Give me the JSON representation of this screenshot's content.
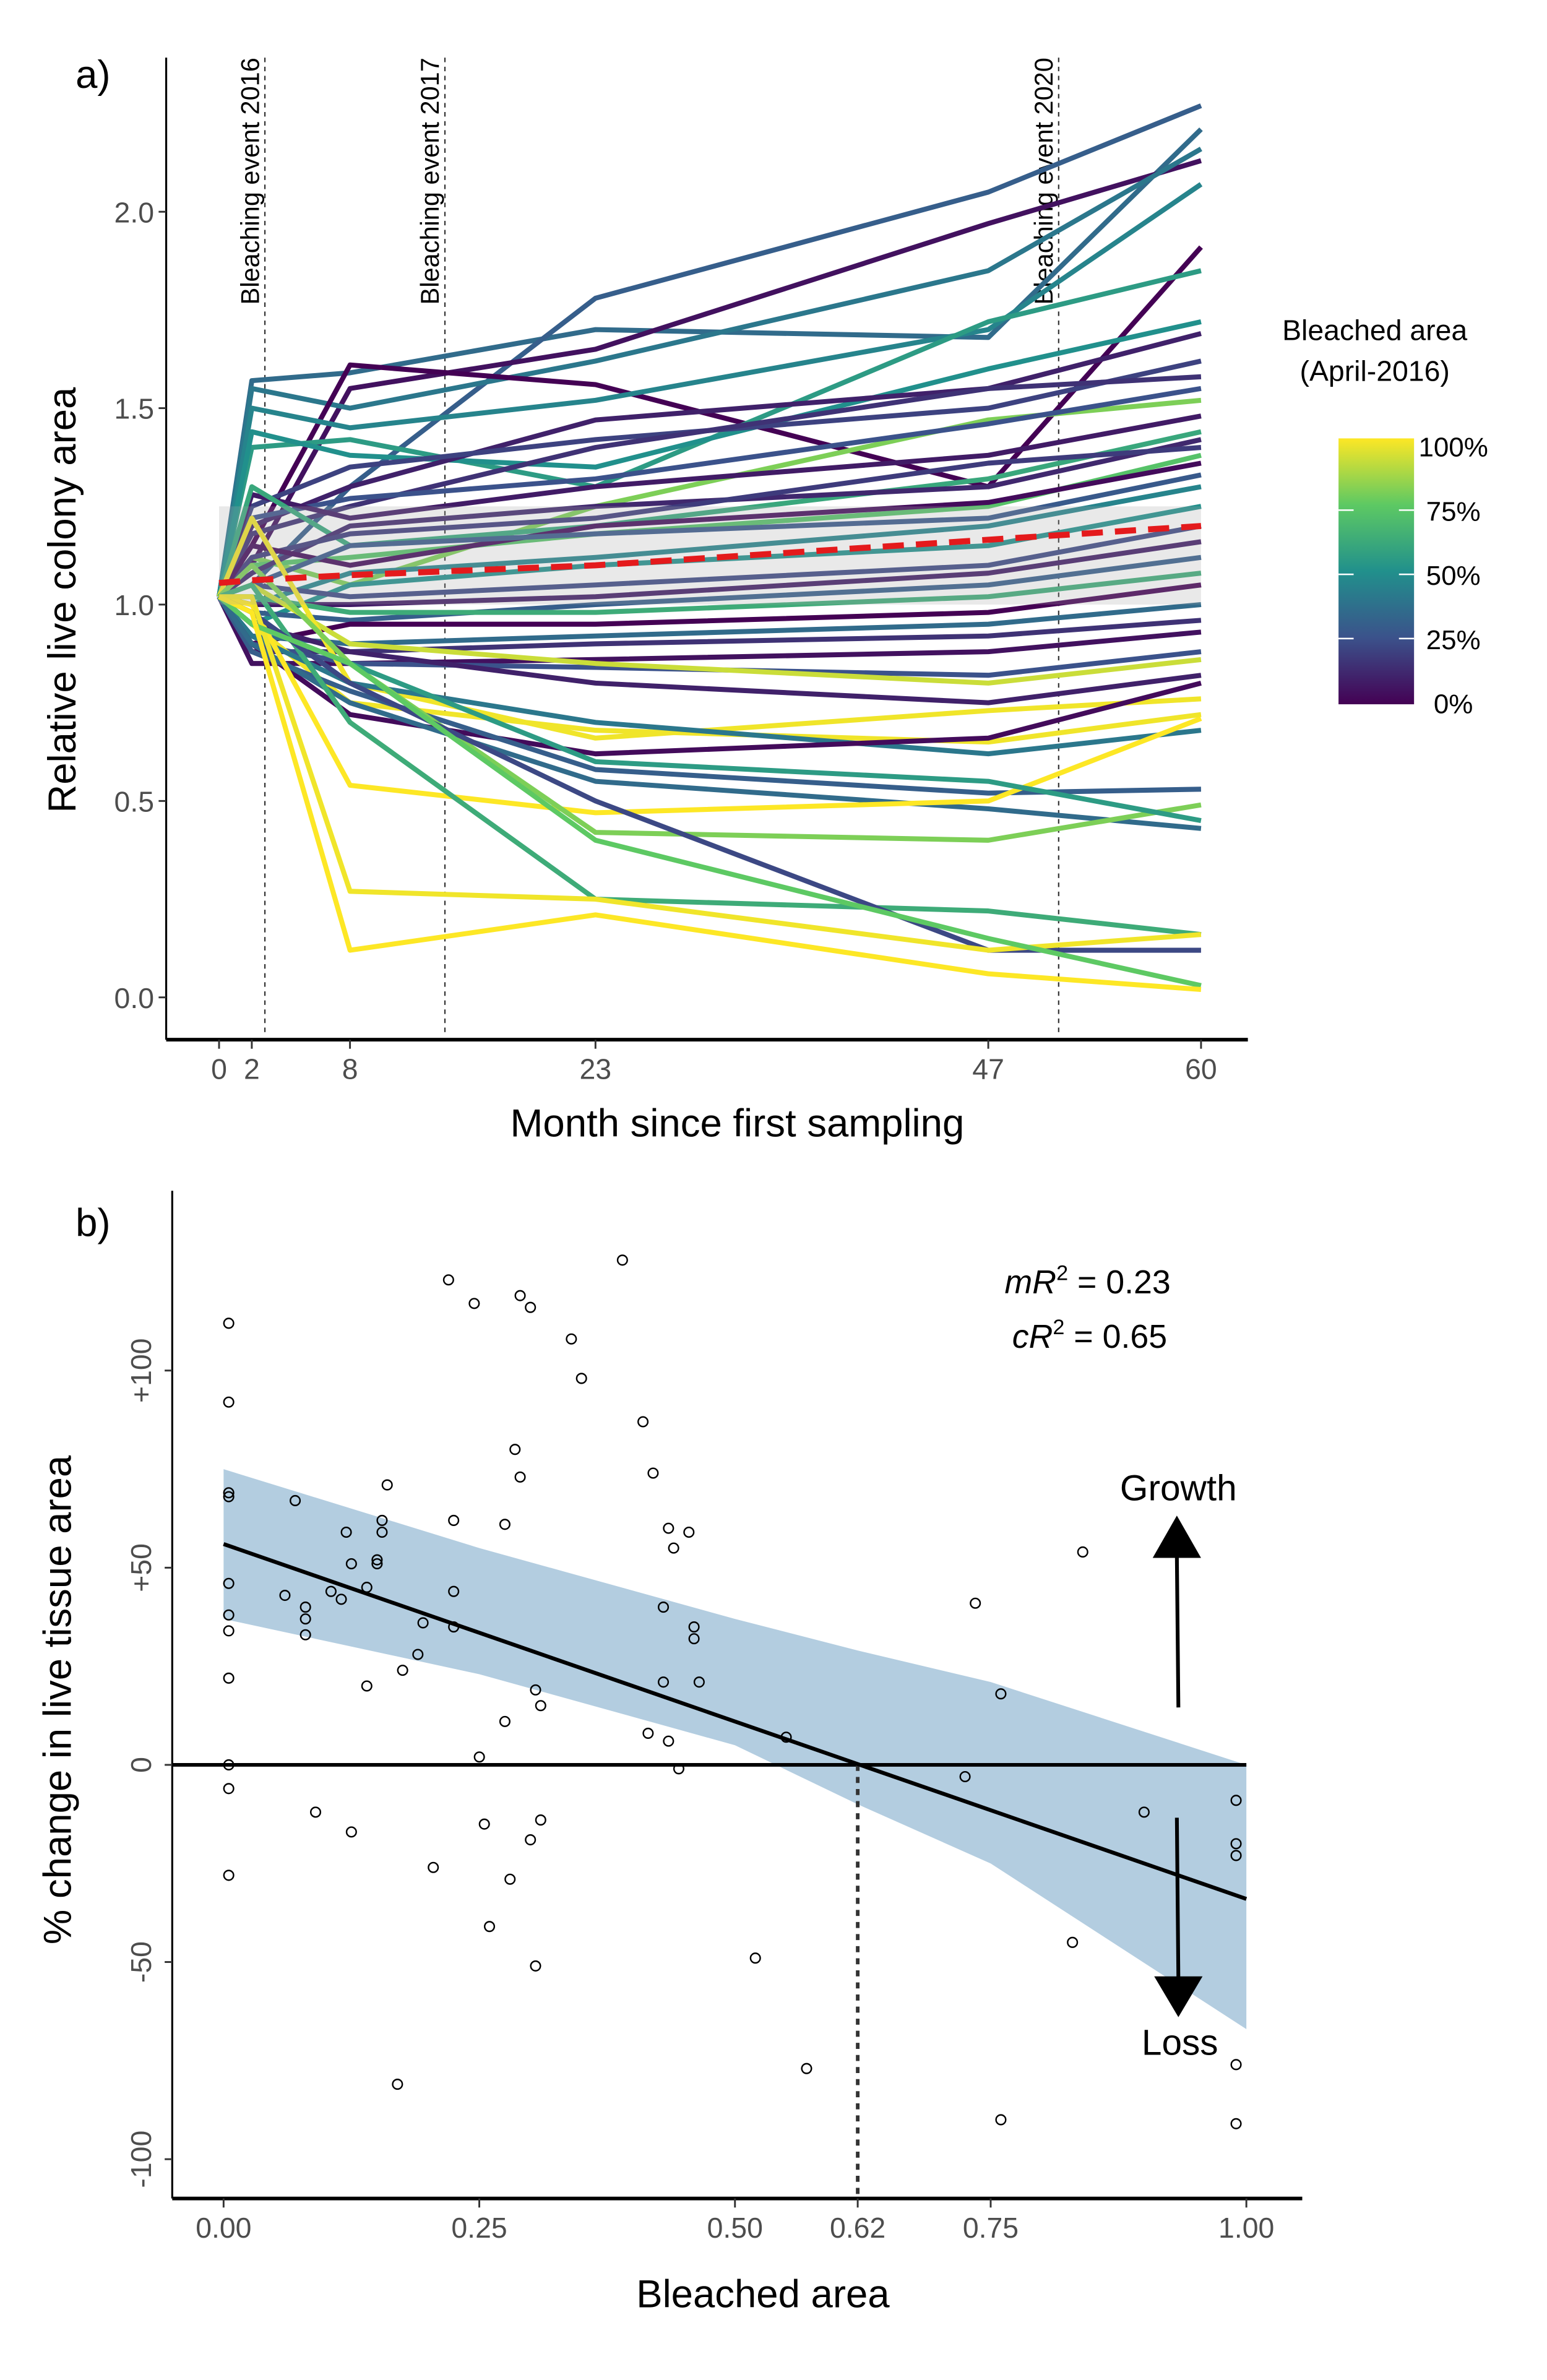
{
  "chart_data": [
    {
      "panel_label": "a)",
      "type": "line",
      "xlabel": "Month since first sampling",
      "ylabel": "Relative live colony area",
      "xticks": [
        0,
        2,
        8,
        23,
        47,
        60
      ],
      "yticks": [
        "0.0",
        "0.5",
        "1.0",
        "1.5",
        "2.0"
      ],
      "ylim": [
        -0.1,
        2.3
      ],
      "xlim": [
        -3,
        63
      ],
      "events": [
        {
          "label": "Bleaching event 2016",
          "month": 2.8
        },
        {
          "label": "Bleaching event 2017",
          "month": 13.8
        },
        {
          "label": "Bleaching event 2020",
          "month": 51.3
        }
      ],
      "x": [
        0,
        2,
        8,
        23,
        47,
        60
      ],
      "series": [
        {
          "bleached": 0.35,
          "values": [
            1.02,
            1.57,
            1.59,
            1.7,
            1.68,
            2.21
          ]
        },
        {
          "bleached": 0.3,
          "values": [
            1.02,
            1.05,
            1.3,
            1.78,
            2.05,
            2.27
          ]
        },
        {
          "bleached": 0.05,
          "values": [
            1.02,
            1.1,
            1.55,
            1.65,
            1.97,
            2.13
          ]
        },
        {
          "bleached": 0.4,
          "values": [
            1.02,
            1.55,
            1.5,
            1.62,
            1.85,
            2.16
          ]
        },
        {
          "bleached": 0.0,
          "values": [
            1.02,
            1.15,
            1.61,
            1.56,
            1.3,
            1.91
          ]
        },
        {
          "bleached": 0.45,
          "values": [
            1.02,
            1.5,
            1.45,
            1.52,
            1.7,
            2.07
          ]
        },
        {
          "bleached": 0.55,
          "values": [
            1.02,
            1.4,
            1.42,
            1.3,
            1.72,
            1.85
          ]
        },
        {
          "bleached": 0.5,
          "values": [
            1.02,
            1.44,
            1.38,
            1.35,
            1.6,
            1.72
          ]
        },
        {
          "bleached": 0.1,
          "values": [
            1.02,
            1.2,
            1.3,
            1.47,
            1.55,
            1.69
          ]
        },
        {
          "bleached": 0.2,
          "values": [
            1.02,
            1.25,
            1.35,
            1.42,
            1.5,
            1.62
          ]
        },
        {
          "bleached": 0.15,
          "values": [
            1.02,
            1.18,
            1.25,
            1.4,
            1.55,
            1.58
          ]
        },
        {
          "bleached": 0.8,
          "values": [
            1.02,
            1.12,
            1.05,
            1.25,
            1.47,
            1.52
          ]
        },
        {
          "bleached": 0.25,
          "values": [
            1.02,
            1.22,
            1.27,
            1.32,
            1.46,
            1.55
          ]
        },
        {
          "bleached": 0.08,
          "values": [
            1.02,
            1.28,
            1.22,
            1.3,
            1.38,
            1.48
          ]
        },
        {
          "bleached": 0.6,
          "values": [
            1.02,
            1.3,
            1.15,
            1.2,
            1.32,
            1.44
          ]
        },
        {
          "bleached": 0.72,
          "values": [
            1.02,
            1.1,
            1.12,
            1.18,
            1.25,
            1.38
          ]
        },
        {
          "bleached": 0.12,
          "values": [
            1.02,
            1.08,
            1.2,
            1.25,
            1.3,
            1.42
          ]
        },
        {
          "bleached": 0.18,
          "values": [
            1.02,
            1.12,
            1.18,
            1.22,
            1.36,
            1.4
          ]
        },
        {
          "bleached": 0.03,
          "values": [
            1.02,
            1.15,
            1.1,
            1.2,
            1.26,
            1.36
          ]
        },
        {
          "bleached": 0.28,
          "values": [
            1.02,
            1.05,
            1.15,
            1.18,
            1.22,
            1.33
          ]
        },
        {
          "bleached": 0.45,
          "values": [
            1.02,
            1.0,
            1.08,
            1.12,
            1.2,
            1.3
          ]
        },
        {
          "bleached": 0.5,
          "values": [
            1.02,
            0.95,
            1.05,
            1.1,
            1.15,
            1.25
          ]
        },
        {
          "bleached": 0.22,
          "values": [
            1.02,
            1.05,
            1.02,
            1.05,
            1.1,
            1.2
          ]
        },
        {
          "bleached": 0.08,
          "values": [
            1.02,
            1.0,
            1.0,
            1.02,
            1.08,
            1.16
          ]
        },
        {
          "bleached": 0.3,
          "values": [
            1.02,
            0.98,
            0.96,
            1.0,
            1.05,
            1.12
          ]
        },
        {
          "bleached": 0.62,
          "values": [
            1.02,
            1.02,
            0.98,
            0.98,
            1.02,
            1.08
          ]
        },
        {
          "bleached": 0.0,
          "values": [
            1.02,
            0.9,
            0.95,
            0.95,
            0.98,
            1.05
          ]
        },
        {
          "bleached": 0.35,
          "values": [
            1.02,
            0.92,
            0.9,
            0.92,
            0.95,
            1.0
          ]
        },
        {
          "bleached": 0.15,
          "values": [
            1.02,
            0.88,
            0.88,
            0.9,
            0.92,
            0.96
          ]
        },
        {
          "bleached": 0.05,
          "values": [
            1.02,
            0.85,
            0.85,
            0.86,
            0.88,
            0.93
          ]
        },
        {
          "bleached": 0.25,
          "values": [
            1.02,
            0.9,
            0.85,
            0.84,
            0.82,
            0.88
          ]
        },
        {
          "bleached": 0.92,
          "values": [
            1.02,
            1.05,
            0.9,
            0.85,
            0.8,
            0.86
          ]
        },
        {
          "bleached": 0.1,
          "values": [
            1.02,
            0.95,
            0.88,
            0.8,
            0.75,
            0.82
          ]
        },
        {
          "bleached": 0.98,
          "values": [
            1.02,
            1.22,
            0.8,
            0.66,
            0.73,
            0.76
          ]
        },
        {
          "bleached": 0.98,
          "values": [
            1.02,
            0.95,
            0.75,
            0.68,
            0.65,
            0.72
          ]
        },
        {
          "bleached": 0.4,
          "values": [
            1.02,
            0.92,
            0.8,
            0.7,
            0.62,
            0.68
          ]
        },
        {
          "bleached": 0.03,
          "values": [
            1.02,
            0.9,
            0.72,
            0.62,
            0.66,
            0.8
          ]
        },
        {
          "bleached": 0.3,
          "values": [
            1.02,
            0.88,
            0.78,
            0.58,
            0.52,
            0.53
          ]
        },
        {
          "bleached": 0.35,
          "values": [
            1.02,
            0.9,
            0.75,
            0.55,
            0.48,
            0.43
          ]
        },
        {
          "bleached": 1.0,
          "values": [
            1.02,
            1.0,
            0.54,
            0.47,
            0.5,
            0.71
          ]
        },
        {
          "bleached": 0.8,
          "values": [
            1.02,
            1.1,
            0.85,
            0.42,
            0.4,
            0.49
          ]
        },
        {
          "bleached": 0.55,
          "values": [
            1.02,
            0.95,
            0.85,
            0.6,
            0.55,
            0.45
          ]
        },
        {
          "bleached": 0.62,
          "values": [
            1.02,
            1.05,
            0.7,
            0.25,
            0.22,
            0.16
          ]
        },
        {
          "bleached": 0.22,
          "values": [
            1.02,
            0.98,
            0.8,
            0.5,
            0.12,
            0.12
          ]
        },
        {
          "bleached": 0.98,
          "values": [
            1.02,
            1.02,
            0.27,
            0.25,
            0.12,
            0.16
          ]
        },
        {
          "bleached": 0.75,
          "values": [
            1.02,
            0.95,
            0.85,
            0.4,
            0.15,
            0.03
          ]
        },
        {
          "bleached": 1.0,
          "values": [
            1.02,
            0.98,
            0.12,
            0.21,
            0.06,
            0.02
          ]
        }
      ],
      "trend": {
        "color": "#e41a1c",
        "values": [
          1.055,
          1.062,
          1.075,
          1.1,
          1.165,
          1.2
        ],
        "ci_color": "#a6a6a6"
      },
      "legend": {
        "title_line1": "Bleached area",
        "title_line2": "(April-2016)",
        "labels": [
          "100%",
          "75%",
          "50%",
          "25%",
          "0%"
        ],
        "placement": "right",
        "colors": [
          "#440154",
          "#3b528b",
          "#21908c",
          "#5dc963",
          "#fde725"
        ]
      }
    },
    {
      "panel_label": "b)",
      "type": "scatter",
      "xlabel": "Bleached area",
      "ylabel": "% change in live tissue area",
      "xticks": [
        "0.00",
        "0.25",
        "0.50",
        "0.62",
        "0.75",
        "1.00"
      ],
      "yticks": [
        "-100",
        "-50",
        "0",
        "+50",
        "+100"
      ],
      "xlim": [
        -0.05,
        1.05
      ],
      "ylim": [
        -110,
        140
      ],
      "threshold_x": 0.62,
      "fit": {
        "intercept": 56,
        "slope": -90
      },
      "ci_band": {
        "x": [
          0,
          0.25,
          0.5,
          0.62,
          0.75,
          1.0
        ],
        "upper": [
          75,
          55,
          37,
          29,
          21,
          0
        ],
        "lower": [
          37,
          23,
          5,
          -10,
          -25,
          -67
        ],
        "color": "#b3cde0"
      },
      "annotations": {
        "mR2": "mR² = 0.23",
        "cR2": "cR² = 0.65",
        "mR2_prefix": "mR",
        "cR2_prefix": "cR",
        "mR2_value": " = 0.23",
        "cR2_value": " = 0.65",
        "growth": "Growth",
        "loss": "Loss"
      },
      "points": [
        [
          0.005,
          112
        ],
        [
          0.005,
          92
        ],
        [
          0.005,
          68
        ],
        [
          0.005,
          69
        ],
        [
          0.005,
          46
        ],
        [
          0.005,
          38
        ],
        [
          0.005,
          34
        ],
        [
          0.005,
          22
        ],
        [
          0.005,
          0
        ],
        [
          0.005,
          -6
        ],
        [
          0.005,
          -28
        ],
        [
          0.06,
          43
        ],
        [
          0.07,
          67
        ],
        [
          0.08,
          40
        ],
        [
          0.08,
          37
        ],
        [
          0.08,
          33
        ],
        [
          0.09,
          -12
        ],
        [
          0.105,
          44
        ],
        [
          0.115,
          42
        ],
        [
          0.12,
          59
        ],
        [
          0.125,
          51
        ],
        [
          0.125,
          -17
        ],
        [
          0.14,
          45
        ],
        [
          0.14,
          20
        ],
        [
          0.15,
          52
        ],
        [
          0.15,
          51
        ],
        [
          0.155,
          62
        ],
        [
          0.155,
          59
        ],
        [
          0.16,
          71
        ],
        [
          0.17,
          -81
        ],
        [
          0.175,
          24
        ],
        [
          0.19,
          28
        ],
        [
          0.195,
          36
        ],
        [
          0.205,
          -26
        ],
        [
          0.22,
          123
        ],
        [
          0.225,
          62
        ],
        [
          0.225,
          44
        ],
        [
          0.225,
          35
        ],
        [
          0.245,
          117
        ],
        [
          0.25,
          2
        ],
        [
          0.255,
          -15
        ],
        [
          0.26,
          -41
        ],
        [
          0.275,
          61
        ],
        [
          0.275,
          11
        ],
        [
          0.28,
          -29
        ],
        [
          0.285,
          80
        ],
        [
          0.29,
          73
        ],
        [
          0.29,
          119
        ],
        [
          0.3,
          116
        ],
        [
          0.3,
          -19
        ],
        [
          0.305,
          19
        ],
        [
          0.305,
          -51
        ],
        [
          0.31,
          15
        ],
        [
          0.31,
          -14
        ],
        [
          0.34,
          108
        ],
        [
          0.35,
          98
        ],
        [
          0.39,
          128
        ],
        [
          0.41,
          87
        ],
        [
          0.415,
          8
        ],
        [
          0.42,
          74
        ],
        [
          0.43,
          40
        ],
        [
          0.43,
          21
        ],
        [
          0.435,
          60
        ],
        [
          0.435,
          6
        ],
        [
          0.44,
          55
        ],
        [
          0.445,
          -1
        ],
        [
          0.455,
          59
        ],
        [
          0.46,
          35
        ],
        [
          0.46,
          32
        ],
        [
          0.465,
          21
        ],
        [
          0.52,
          -49
        ],
        [
          0.55,
          7
        ],
        [
          0.57,
          -77
        ],
        [
          0.725,
          -3
        ],
        [
          0.735,
          41
        ],
        [
          0.76,
          18
        ],
        [
          0.76,
          -90
        ],
        [
          0.83,
          -45
        ],
        [
          0.84,
          54
        ],
        [
          0.9,
          -12
        ],
        [
          0.99,
          -9
        ],
        [
          0.99,
          -20
        ],
        [
          0.99,
          -23
        ],
        [
          0.99,
          -76
        ],
        [
          0.99,
          -91
        ]
      ]
    }
  ]
}
